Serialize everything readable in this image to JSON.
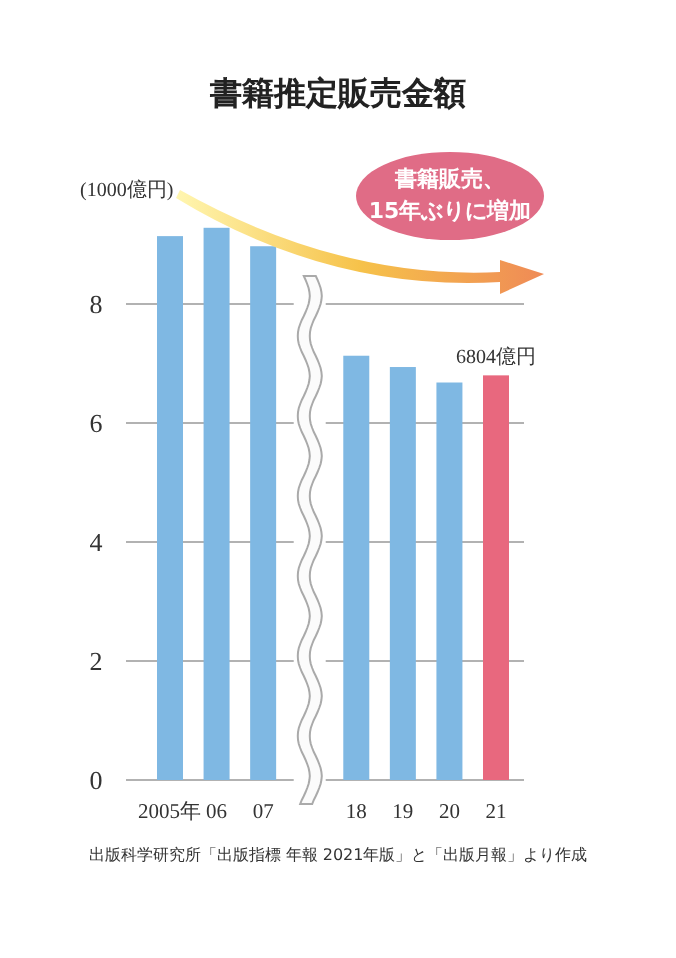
{
  "chart_data": {
    "type": "bar",
    "title": "書籍推定販売金額",
    "ylabel": "(1000億円)",
    "categories": [
      "2005年",
      "06",
      "07",
      null,
      "18",
      "19",
      "20",
      "21"
    ],
    "values": [
      9.14,
      9.28,
      8.97,
      null,
      7.13,
      6.94,
      6.68,
      6.8
    ],
    "colors": [
      "#7fb8e3",
      "#7fb8e3",
      "#7fb8e3",
      "#7fb8e3",
      "#7fb8e3",
      "#7fb8e3",
      "#7fb8e3",
      "#e8687e"
    ],
    "ylim": [
      0,
      9.3
    ],
    "yticks": [
      0,
      2,
      4,
      6,
      8
    ],
    "grid": "y",
    "annotations": [
      "書籍販売、\n15年ぶりに増加",
      {
        "text": "6804億円",
        "x": "21",
        "y": 6.8
      },
      "出版科学研究所「出版指標 年報 2021年版」と「出版月報」より作成"
    ]
  }
}
